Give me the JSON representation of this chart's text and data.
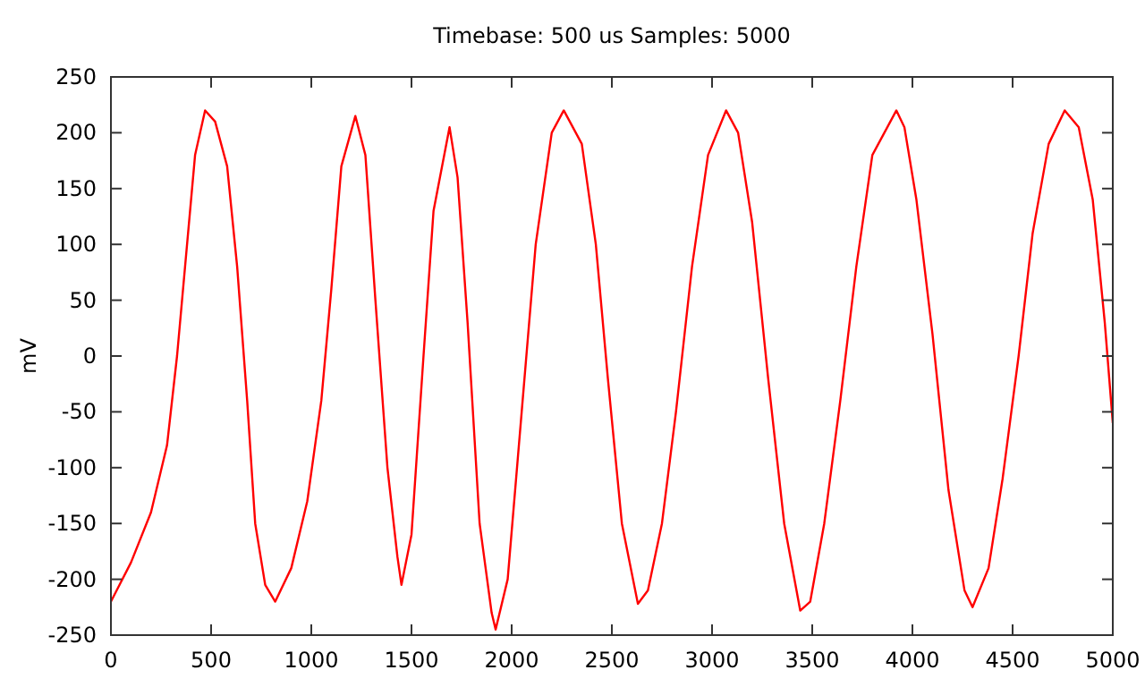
{
  "chart_data": {
    "type": "line",
    "title": "Timebase: 500 us Samples: 5000",
    "ylabel": "mV",
    "x": [
      0,
      100,
      200,
      280,
      330,
      380,
      420,
      470,
      520,
      580,
      630,
      680,
      720,
      770,
      820,
      900,
      980,
      1050,
      1100,
      1150,
      1220,
      1270,
      1320,
      1380,
      1430,
      1450,
      1500,
      1560,
      1610,
      1690,
      1730,
      1780,
      1840,
      1900,
      1920,
      1980,
      2050,
      2120,
      2200,
      2260,
      2350,
      2420,
      2480,
      2550,
      2630,
      2680,
      2750,
      2820,
      2900,
      2980,
      3070,
      3130,
      3200,
      3280,
      3360,
      3440,
      3490,
      3560,
      3640,
      3720,
      3800,
      3920,
      3960,
      4020,
      4100,
      4180,
      4260,
      4300,
      4380,
      4450,
      4530,
      4600,
      4680,
      4760,
      4830,
      4900,
      4960,
      5000
    ],
    "series": [
      {
        "color": "#ff0000",
        "values": [
          -220,
          -185,
          -140,
          -80,
          0,
          100,
          180,
          220,
          210,
          170,
          80,
          -40,
          -150,
          -205,
          -220,
          -190,
          -130,
          -40,
          60,
          170,
          215,
          180,
          50,
          -100,
          -180,
          -205,
          -160,
          0,
          130,
          205,
          160,
          30,
          -150,
          -230,
          -245,
          -200,
          -50,
          100,
          200,
          220,
          190,
          100,
          -20,
          -150,
          -222,
          -210,
          -150,
          -50,
          80,
          180,
          220,
          200,
          120,
          -20,
          -150,
          -228,
          -220,
          -150,
          -40,
          80,
          180,
          220,
          205,
          140,
          20,
          -120,
          -210,
          -225,
          -190,
          -110,
          0,
          110,
          190,
          220,
          205,
          140,
          30,
          -60
        ]
      }
    ],
    "xlim": [
      0,
      5000
    ],
    "xticks": [
      0,
      500,
      1000,
      1500,
      2000,
      2500,
      3000,
      3500,
      4000,
      4500,
      5000
    ],
    "ylim": [
      -250,
      250
    ],
    "yticks": [
      -250,
      -200,
      -150,
      -100,
      -50,
      0,
      50,
      100,
      150,
      200,
      250
    ],
    "grid": false,
    "marker": "none",
    "line_style": "solid"
  }
}
